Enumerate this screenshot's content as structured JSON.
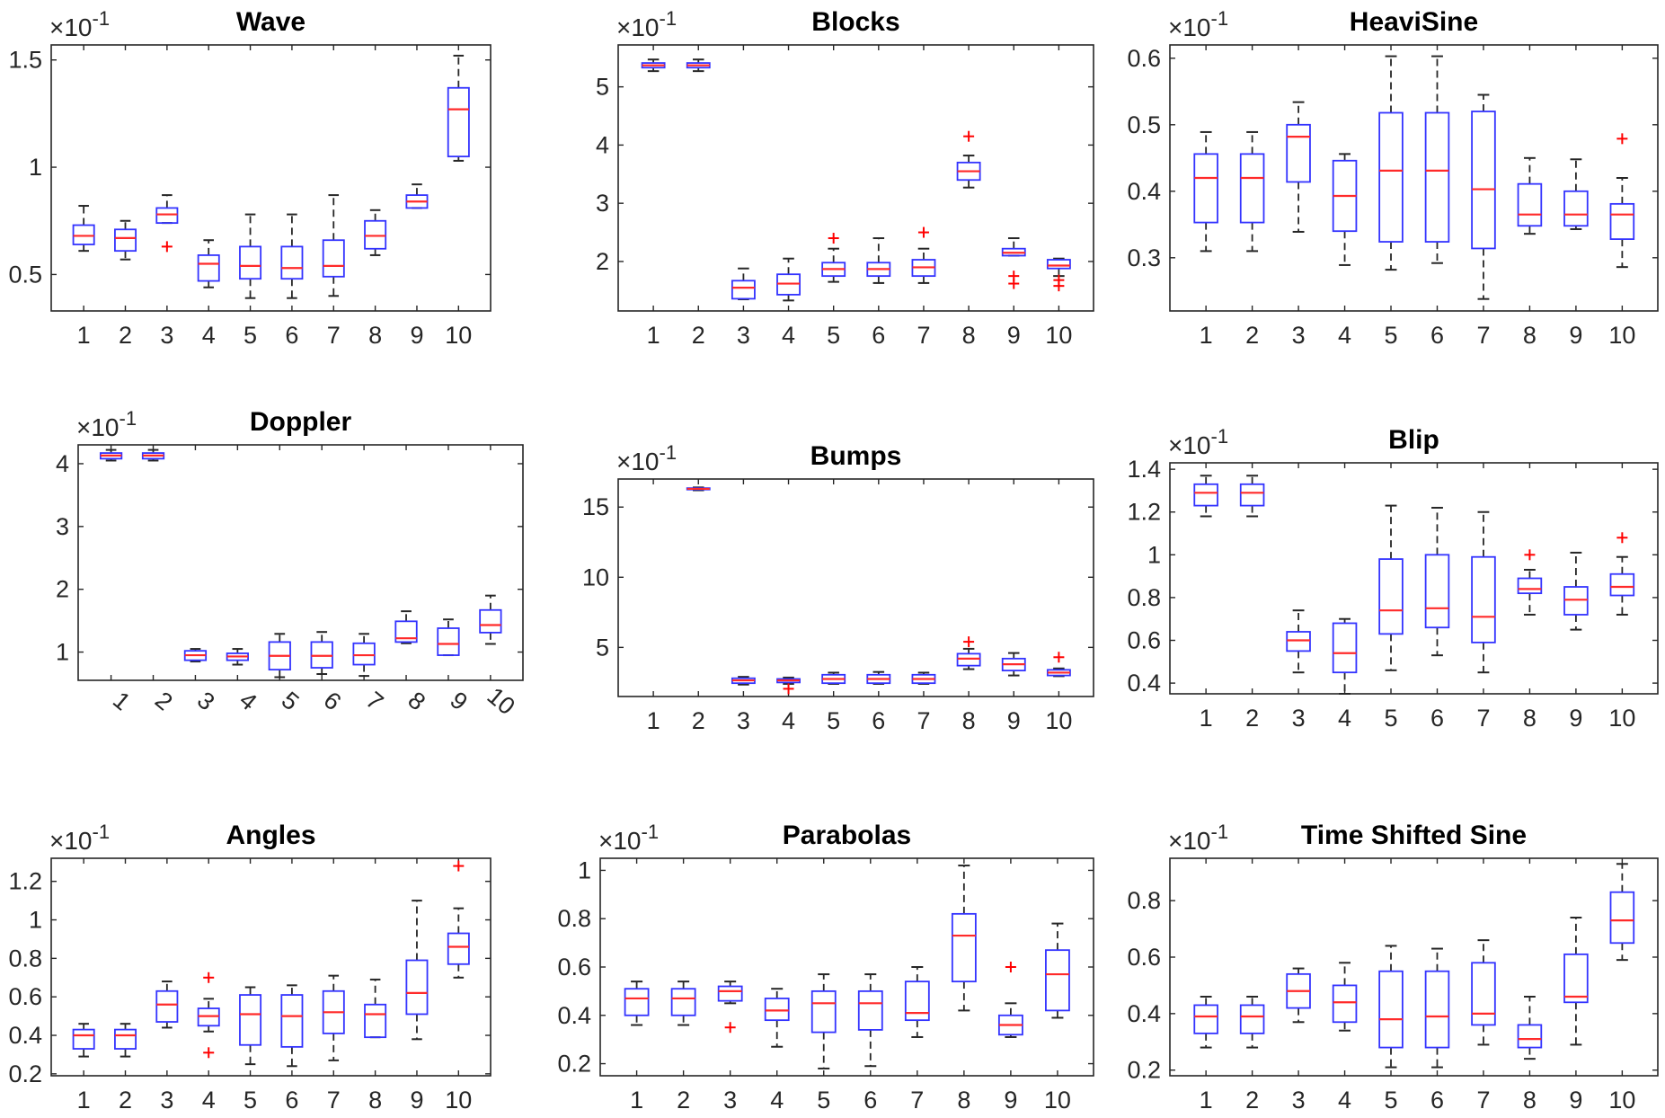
{
  "colors": {
    "box": "#3333ff",
    "median": "#ff2a2a",
    "outlier": "#ff0000",
    "whisker": "#262626",
    "axis": "#262626"
  },
  "chart_data": [
    {
      "type": "box",
      "title": "Wave",
      "exponent_label": "×10",
      "exponent_power": "-1",
      "categories": [
        "1",
        "2",
        "3",
        "4",
        "5",
        "6",
        "7",
        "8",
        "9",
        "10"
      ],
      "ylim": [
        0.33,
        1.57
      ],
      "yticks": [
        0.5,
        1,
        1.5
      ],
      "ytick_labels": [
        "0.5",
        "1",
        "1.5"
      ],
      "rotate_x": false,
      "boxes": [
        {
          "min": 0.61,
          "q1": 0.64,
          "med": 0.68,
          "q3": 0.73,
          "max": 0.82,
          "outliers": []
        },
        {
          "min": 0.57,
          "q1": 0.61,
          "med": 0.67,
          "q3": 0.71,
          "max": 0.75,
          "outliers": []
        },
        {
          "min": 0.74,
          "q1": 0.74,
          "med": 0.78,
          "q3": 0.81,
          "max": 0.87,
          "outliers": [
            0.63
          ]
        },
        {
          "min": 0.44,
          "q1": 0.47,
          "med": 0.55,
          "q3": 0.59,
          "max": 0.66,
          "outliers": []
        },
        {
          "min": 0.39,
          "q1": 0.48,
          "med": 0.54,
          "q3": 0.63,
          "max": 0.78,
          "outliers": []
        },
        {
          "min": 0.39,
          "q1": 0.48,
          "med": 0.53,
          "q3": 0.63,
          "max": 0.78,
          "outliers": []
        },
        {
          "min": 0.4,
          "q1": 0.49,
          "med": 0.54,
          "q3": 0.66,
          "max": 0.87,
          "outliers": []
        },
        {
          "min": 0.59,
          "q1": 0.62,
          "med": 0.68,
          "q3": 0.75,
          "max": 0.8,
          "outliers": []
        },
        {
          "min": 0.81,
          "q1": 0.81,
          "med": 0.84,
          "q3": 0.87,
          "max": 0.92,
          "outliers": []
        },
        {
          "min": 1.03,
          "q1": 1.05,
          "med": 1.27,
          "q3": 1.37,
          "max": 1.52,
          "outliers": []
        }
      ]
    },
    {
      "type": "box",
      "title": "Blocks",
      "exponent_label": "×10",
      "exponent_power": "-1",
      "categories": [
        "1",
        "2",
        "3",
        "4",
        "5",
        "6",
        "7",
        "8",
        "9",
        "10"
      ],
      "ylim": [
        1.15,
        5.72
      ],
      "yticks": [
        2,
        3,
        4,
        5
      ],
      "ytick_labels": [
        "2",
        "3",
        "4",
        "5"
      ],
      "rotate_x": false,
      "boxes": [
        {
          "min": 5.27,
          "q1": 5.33,
          "med": 5.37,
          "q3": 5.41,
          "max": 5.47,
          "outliers": []
        },
        {
          "min": 5.27,
          "q1": 5.33,
          "med": 5.37,
          "q3": 5.41,
          "max": 5.47,
          "outliers": []
        },
        {
          "min": 1.35,
          "q1": 1.36,
          "med": 1.55,
          "q3": 1.67,
          "max": 1.88,
          "outliers": []
        },
        {
          "min": 1.33,
          "q1": 1.43,
          "med": 1.62,
          "q3": 1.78,
          "max": 2.05,
          "outliers": []
        },
        {
          "min": 1.65,
          "q1": 1.75,
          "med": 1.87,
          "q3": 1.98,
          "max": 2.22,
          "outliers": [
            2.4
          ]
        },
        {
          "min": 1.63,
          "q1": 1.75,
          "med": 1.87,
          "q3": 1.98,
          "max": 2.4,
          "outliers": []
        },
        {
          "min": 1.63,
          "q1": 1.75,
          "med": 1.9,
          "q3": 2.03,
          "max": 2.22,
          "outliers": [
            2.5
          ]
        },
        {
          "min": 3.27,
          "q1": 3.4,
          "med": 3.55,
          "q3": 3.7,
          "max": 3.82,
          "outliers": [
            4.15
          ]
        },
        {
          "min": 2.1,
          "q1": 2.1,
          "med": 2.15,
          "q3": 2.22,
          "max": 2.4,
          "outliers": [
            1.62,
            1.75
          ]
        },
        {
          "min": 1.75,
          "q1": 1.88,
          "med": 1.93,
          "q3": 2.03,
          "max": 2.05,
          "outliers": [
            1.58,
            1.68
          ]
        }
      ]
    },
    {
      "type": "box",
      "title": "HeaviSine",
      "exponent_label": "×10",
      "exponent_power": "-1",
      "categories": [
        "1",
        "2",
        "3",
        "4",
        "5",
        "6",
        "7",
        "8",
        "9",
        "10"
      ],
      "ylim": [
        0.22,
        0.62
      ],
      "yticks": [
        0.3,
        0.4,
        0.5,
        0.6
      ],
      "ytick_labels": [
        "0.3",
        "0.4",
        "0.5",
        "0.6"
      ],
      "rotate_x": false,
      "boxes": [
        {
          "min": 0.31,
          "q1": 0.353,
          "med": 0.42,
          "q3": 0.456,
          "max": 0.489,
          "outliers": []
        },
        {
          "min": 0.31,
          "q1": 0.353,
          "med": 0.42,
          "q3": 0.456,
          "max": 0.489,
          "outliers": []
        },
        {
          "min": 0.339,
          "q1": 0.414,
          "med": 0.482,
          "q3": 0.5,
          "max": 0.534,
          "outliers": []
        },
        {
          "min": 0.289,
          "q1": 0.34,
          "med": 0.393,
          "q3": 0.446,
          "max": 0.456,
          "outliers": []
        },
        {
          "min": 0.282,
          "q1": 0.324,
          "med": 0.431,
          "q3": 0.518,
          "max": 0.603,
          "outliers": []
        },
        {
          "min": 0.292,
          "q1": 0.324,
          "med": 0.431,
          "q3": 0.518,
          "max": 0.603,
          "outliers": []
        },
        {
          "min": 0.238,
          "q1": 0.314,
          "med": 0.403,
          "q3": 0.52,
          "max": 0.545,
          "outliers": []
        },
        {
          "min": 0.336,
          "q1": 0.348,
          "med": 0.365,
          "q3": 0.411,
          "max": 0.45,
          "outliers": []
        },
        {
          "min": 0.343,
          "q1": 0.348,
          "med": 0.365,
          "q3": 0.4,
          "max": 0.448,
          "outliers": []
        },
        {
          "min": 0.286,
          "q1": 0.328,
          "med": 0.365,
          "q3": 0.381,
          "max": 0.42,
          "outliers": [
            0.479
          ]
        }
      ]
    },
    {
      "type": "box",
      "title": "Doppler",
      "exponent_label": "×10",
      "exponent_power": "-1",
      "categories": [
        "1",
        "2",
        "3",
        "4",
        "5",
        "6",
        "7",
        "8",
        "9",
        "10"
      ],
      "ylim": [
        0.55,
        4.3
      ],
      "yticks": [
        1,
        2,
        3,
        4
      ],
      "ytick_labels": [
        "1",
        "2",
        "3",
        "4"
      ],
      "rotate_x": true,
      "boxes": [
        {
          "min": 4.05,
          "q1": 4.08,
          "med": 4.13,
          "q3": 4.17,
          "max": 4.22,
          "outliers": []
        },
        {
          "min": 4.05,
          "q1": 4.08,
          "med": 4.13,
          "q3": 4.17,
          "max": 4.22,
          "outliers": []
        },
        {
          "min": 0.85,
          "q1": 0.87,
          "med": 0.95,
          "q3": 1.02,
          "max": 1.05,
          "outliers": []
        },
        {
          "min": 0.8,
          "q1": 0.87,
          "med": 0.93,
          "q3": 0.98,
          "max": 1.05,
          "outliers": []
        },
        {
          "min": 0.6,
          "q1": 0.72,
          "med": 0.94,
          "q3": 1.16,
          "max": 1.29,
          "outliers": []
        },
        {
          "min": 0.65,
          "q1": 0.75,
          "med": 0.94,
          "q3": 1.16,
          "max": 1.32,
          "outliers": []
        },
        {
          "min": 0.62,
          "q1": 0.8,
          "med": 0.95,
          "q3": 1.14,
          "max": 1.29,
          "outliers": []
        },
        {
          "min": 1.14,
          "q1": 1.16,
          "med": 1.22,
          "q3": 1.49,
          "max": 1.65,
          "outliers": []
        },
        {
          "min": 0.95,
          "q1": 0.95,
          "med": 1.13,
          "q3": 1.38,
          "max": 1.52,
          "outliers": []
        },
        {
          "min": 1.13,
          "q1": 1.31,
          "med": 1.43,
          "q3": 1.67,
          "max": 1.9,
          "outliers": []
        }
      ]
    },
    {
      "type": "box",
      "title": "Bumps",
      "exponent_label": "×10",
      "exponent_power": "-1",
      "categories": [
        "1",
        "2",
        "3",
        "4",
        "5",
        "6",
        "7",
        "8",
        "9",
        "10"
      ],
      "ylim": [
        1.5,
        17.0
      ],
      "yticks": [
        5,
        10,
        15
      ],
      "ytick_labels": [
        "5",
        "10",
        "15"
      ],
      "rotate_x": false,
      "boxes": [
        null,
        {
          "min": 16.2,
          "q1": 16.25,
          "med": 16.3,
          "q3": 16.35,
          "max": 16.4,
          "outliers": []
        },
        {
          "min": 2.35,
          "q1": 2.45,
          "med": 2.65,
          "q3": 2.8,
          "max": 2.9,
          "outliers": []
        },
        {
          "min": 2.4,
          "q1": 2.5,
          "med": 2.65,
          "q3": 2.75,
          "max": 2.85,
          "outliers": [
            2.05
          ]
        },
        {
          "min": 2.4,
          "q1": 2.45,
          "med": 2.75,
          "q3": 3.05,
          "max": 3.2,
          "outliers": []
        },
        {
          "min": 2.4,
          "q1": 2.45,
          "med": 2.75,
          "q3": 3.05,
          "max": 3.25,
          "outliers": []
        },
        {
          "min": 2.4,
          "q1": 2.45,
          "med": 2.75,
          "q3": 3.05,
          "max": 3.2,
          "outliers": []
        },
        {
          "min": 3.45,
          "q1": 3.7,
          "med": 4.2,
          "q3": 4.55,
          "max": 4.9,
          "outliers": [
            5.4
          ]
        },
        {
          "min": 3.0,
          "q1": 3.35,
          "med": 3.8,
          "q3": 4.2,
          "max": 4.6,
          "outliers": []
        },
        {
          "min": 2.95,
          "q1": 3.0,
          "med": 3.2,
          "q3": 3.4,
          "max": 3.5,
          "outliers": [
            4.3
          ]
        }
      ]
    },
    {
      "type": "box",
      "title": "Blip",
      "exponent_label": "×10",
      "exponent_power": "-1",
      "categories": [
        "1",
        "2",
        "3",
        "4",
        "5",
        "6",
        "7",
        "8",
        "9",
        "10"
      ],
      "ylim": [
        0.35,
        1.43
      ],
      "yticks": [
        0.4,
        0.6,
        0.8,
        1,
        1.2,
        1.4
      ],
      "ytick_labels": [
        "0.4",
        "0.6",
        "0.8",
        "1",
        "1.2",
        "1.4"
      ],
      "rotate_x": false,
      "boxes": [
        {
          "min": 1.18,
          "q1": 1.23,
          "med": 1.29,
          "q3": 1.33,
          "max": 1.37,
          "outliers": []
        },
        {
          "min": 1.18,
          "q1": 1.23,
          "med": 1.29,
          "q3": 1.33,
          "max": 1.37,
          "outliers": []
        },
        {
          "min": 0.45,
          "q1": 0.55,
          "med": 0.6,
          "q3": 0.64,
          "max": 0.74,
          "outliers": []
        },
        {
          "min": 0.35,
          "q1": 0.45,
          "med": 0.54,
          "q3": 0.68,
          "max": 0.7,
          "outliers": []
        },
        {
          "min": 0.46,
          "q1": 0.63,
          "med": 0.74,
          "q3": 0.98,
          "max": 1.23,
          "outliers": []
        },
        {
          "min": 0.53,
          "q1": 0.66,
          "med": 0.75,
          "q3": 1.0,
          "max": 1.22,
          "outliers": []
        },
        {
          "min": 0.45,
          "q1": 0.59,
          "med": 0.71,
          "q3": 0.99,
          "max": 1.2,
          "outliers": []
        },
        {
          "min": 0.72,
          "q1": 0.82,
          "med": 0.84,
          "q3": 0.89,
          "max": 0.93,
          "outliers": [
            1.0
          ]
        },
        {
          "min": 0.65,
          "q1": 0.72,
          "med": 0.79,
          "q3": 0.85,
          "max": 1.01,
          "outliers": []
        },
        {
          "min": 0.72,
          "q1": 0.81,
          "med": 0.85,
          "q3": 0.91,
          "max": 0.99,
          "outliers": [
            1.08
          ]
        }
      ]
    },
    {
      "type": "box",
      "title": "Angles",
      "exponent_label": "×10",
      "exponent_power": "-1",
      "categories": [
        "1",
        "2",
        "3",
        "4",
        "5",
        "6",
        "7",
        "8",
        "9",
        "10"
      ],
      "ylim": [
        0.19,
        1.32
      ],
      "yticks": [
        0.2,
        0.4,
        0.6,
        0.8,
        1,
        1.2
      ],
      "ytick_labels": [
        "0.2",
        "0.4",
        "0.6",
        "0.8",
        "1",
        "1.2"
      ],
      "rotate_x": false,
      "boxes": [
        {
          "min": 0.29,
          "q1": 0.33,
          "med": 0.4,
          "q3": 0.43,
          "max": 0.46,
          "outliers": []
        },
        {
          "min": 0.29,
          "q1": 0.33,
          "med": 0.4,
          "q3": 0.43,
          "max": 0.46,
          "outliers": []
        },
        {
          "min": 0.44,
          "q1": 0.47,
          "med": 0.56,
          "q3": 0.63,
          "max": 0.68,
          "outliers": []
        },
        {
          "min": 0.42,
          "q1": 0.45,
          "med": 0.5,
          "q3": 0.54,
          "max": 0.59,
          "outliers": [
            0.31,
            0.7
          ]
        },
        {
          "min": 0.25,
          "q1": 0.35,
          "med": 0.51,
          "q3": 0.61,
          "max": 0.65,
          "outliers": []
        },
        {
          "min": 0.24,
          "q1": 0.34,
          "med": 0.5,
          "q3": 0.61,
          "max": 0.66,
          "outliers": []
        },
        {
          "min": 0.27,
          "q1": 0.41,
          "med": 0.52,
          "q3": 0.63,
          "max": 0.71,
          "outliers": []
        },
        {
          "min": 0.39,
          "q1": 0.39,
          "med": 0.51,
          "q3": 0.56,
          "max": 0.69,
          "outliers": []
        },
        {
          "min": 0.38,
          "q1": 0.51,
          "med": 0.62,
          "q3": 0.79,
          "max": 1.1,
          "outliers": []
        },
        {
          "min": 0.7,
          "q1": 0.77,
          "med": 0.86,
          "q3": 0.93,
          "max": 1.06,
          "outliers": [
            1.28
          ]
        }
      ]
    },
    {
      "type": "box",
      "title": "Parabolas",
      "exponent_label": "×10",
      "exponent_power": "-1",
      "categories": [
        "1",
        "2",
        "3",
        "4",
        "5",
        "6",
        "7",
        "8",
        "9",
        "10"
      ],
      "ylim": [
        0.15,
        1.05
      ],
      "yticks": [
        0.2,
        0.4,
        0.6,
        0.8,
        1
      ],
      "ytick_labels": [
        "0.2",
        "0.4",
        "0.6",
        "0.8",
        "1"
      ],
      "rotate_x": false,
      "boxes": [
        {
          "min": 0.36,
          "q1": 0.4,
          "med": 0.47,
          "q3": 0.51,
          "max": 0.54,
          "outliers": []
        },
        {
          "min": 0.36,
          "q1": 0.4,
          "med": 0.47,
          "q3": 0.51,
          "max": 0.54,
          "outliers": []
        },
        {
          "min": 0.45,
          "q1": 0.46,
          "med": 0.5,
          "q3": 0.52,
          "max": 0.54,
          "outliers": [
            0.35
          ]
        },
        {
          "min": 0.27,
          "q1": 0.38,
          "med": 0.42,
          "q3": 0.47,
          "max": 0.51,
          "outliers": []
        },
        {
          "min": 0.18,
          "q1": 0.33,
          "med": 0.45,
          "q3": 0.5,
          "max": 0.57,
          "outliers": []
        },
        {
          "min": 0.19,
          "q1": 0.34,
          "med": 0.45,
          "q3": 0.5,
          "max": 0.57,
          "outliers": []
        },
        {
          "min": 0.31,
          "q1": 0.38,
          "med": 0.41,
          "q3": 0.54,
          "max": 0.6,
          "outliers": []
        },
        {
          "min": 0.42,
          "q1": 0.54,
          "med": 0.73,
          "q3": 0.82,
          "max": 1.02,
          "outliers": []
        },
        {
          "min": 0.31,
          "q1": 0.32,
          "med": 0.36,
          "q3": 0.4,
          "max": 0.45,
          "outliers": [
            0.6
          ]
        },
        {
          "min": 0.39,
          "q1": 0.42,
          "med": 0.57,
          "q3": 0.67,
          "max": 0.78,
          "outliers": []
        }
      ]
    },
    {
      "type": "box",
      "title": "Time Shifted Sine",
      "exponent_label": "×10",
      "exponent_power": "-1",
      "categories": [
        "1",
        "2",
        "3",
        "4",
        "5",
        "6",
        "7",
        "8",
        "9",
        "10"
      ],
      "ylim": [
        0.18,
        0.95
      ],
      "yticks": [
        0.2,
        0.4,
        0.6,
        0.8
      ],
      "ytick_labels": [
        "0.2",
        "0.4",
        "0.6",
        "0.8"
      ],
      "rotate_x": false,
      "boxes": [
        {
          "min": 0.28,
          "q1": 0.33,
          "med": 0.39,
          "q3": 0.43,
          "max": 0.46,
          "outliers": []
        },
        {
          "min": 0.28,
          "q1": 0.33,
          "med": 0.39,
          "q3": 0.43,
          "max": 0.46,
          "outliers": []
        },
        {
          "min": 0.37,
          "q1": 0.42,
          "med": 0.48,
          "q3": 0.54,
          "max": 0.56,
          "outliers": []
        },
        {
          "min": 0.34,
          "q1": 0.37,
          "med": 0.44,
          "q3": 0.5,
          "max": 0.58,
          "outliers": []
        },
        {
          "min": 0.21,
          "q1": 0.28,
          "med": 0.38,
          "q3": 0.55,
          "max": 0.64,
          "outliers": []
        },
        {
          "min": 0.21,
          "q1": 0.28,
          "med": 0.39,
          "q3": 0.55,
          "max": 0.63,
          "outliers": []
        },
        {
          "min": 0.29,
          "q1": 0.36,
          "med": 0.4,
          "q3": 0.58,
          "max": 0.66,
          "outliers": []
        },
        {
          "min": 0.24,
          "q1": 0.28,
          "med": 0.31,
          "q3": 0.36,
          "max": 0.46,
          "outliers": []
        },
        {
          "min": 0.29,
          "q1": 0.44,
          "med": 0.46,
          "q3": 0.61,
          "max": 0.74,
          "outliers": []
        },
        {
          "min": 0.59,
          "q1": 0.65,
          "med": 0.73,
          "q3": 0.83,
          "max": 0.93,
          "outliers": []
        }
      ]
    }
  ]
}
